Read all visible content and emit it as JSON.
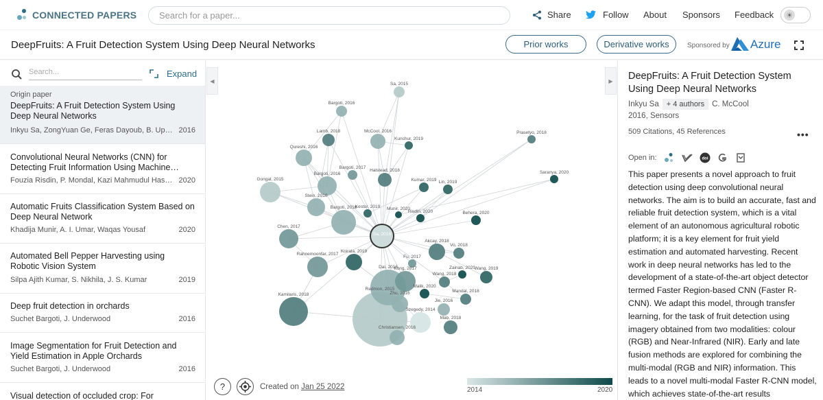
{
  "brand": {
    "name": "CONNECTED PAPERS"
  },
  "nav": {
    "search_placeholder": "Search for a paper...",
    "share": "Share",
    "follow": "Follow",
    "about": "About",
    "sponsors": "Sponsors",
    "feedback": "Feedback"
  },
  "titlebar": {
    "title": "DeepFruits: A Fruit Detection System Using Deep Neural Networks",
    "prior": "Prior works",
    "derivative": "Derivative works",
    "sponsored_by": "Sponsored by",
    "sponsor": "Azure"
  },
  "left": {
    "search_placeholder": "Search...",
    "expand": "Expand",
    "origin_label": "Origin paper",
    "papers": [
      {
        "title": "DeepFruits: A Fruit Detection System Using Deep Neural Networks",
        "authors": "Inkyu Sa, ZongYuan Ge, Feras Dayoub, B. Upcroft…",
        "year": "2016"
      },
      {
        "title": "Convolutional Neural Networks (CNN) for Detecting Fruit Information Using Machine…",
        "authors": "Fouzia Risdin, P. Mondal, Kazi Mahmudul Hassan",
        "year": "2020"
      },
      {
        "title": "Automatic Fruits Classification System Based on Deep Neural Network",
        "authors": "Khadija Munir, A. I. Umar, Waqas Yousaf",
        "year": "2020"
      },
      {
        "title": "Automated Bell Pepper Harvesting using Robotic Vision System",
        "authors": "Silpa Ajith Kumar, S. Nikhila, J. S. Kumar",
        "year": "2019"
      },
      {
        "title": "Deep fruit detection in orchards",
        "authors": "Suchet Bargoti, J. Underwood",
        "year": "2016"
      },
      {
        "title": "Image Segmentation for Fruit Detection and Yield Estimation in Apple Orchards",
        "authors": "Suchet Bargoti, J. Underwood",
        "year": "2016"
      },
      {
        "title": "Visual detection of occluded crop: For",
        "authors": "",
        "year": ""
      }
    ]
  },
  "graph": {
    "created_prefix": "Created on",
    "created_date": "Jan 25 2022",
    "legend_min": "2014",
    "legend_max": "2020",
    "help": "?",
    "nodes": [
      {
        "label": "Sa, 2016",
        "year": 2016
      },
      {
        "label": "Sa, 2015",
        "year": 2015
      },
      {
        "label": "Bargoti, 2016",
        "year": 2016
      },
      {
        "label": "Lamb, 2018",
        "year": 2018
      },
      {
        "label": "McCool, 2016",
        "year": 2016
      },
      {
        "label": "Kunchur, 2019",
        "year": 2019
      },
      {
        "label": "Prasetyo, 2018",
        "year": 2018
      },
      {
        "label": "Qureshi, 2016",
        "year": 2016
      },
      {
        "label": "Bargoti, 2017",
        "year": 2017
      },
      {
        "label": "Halstead, 2018",
        "year": 2018
      },
      {
        "label": "Bargoti, 2016",
        "year": 2016
      },
      {
        "label": "Saranya, 2020",
        "year": 2020
      },
      {
        "label": "Gongal, 2015",
        "year": 2015
      },
      {
        "label": "Kumar, 2019",
        "year": 2019
      },
      {
        "label": "Lin, 2019",
        "year": 2019
      },
      {
        "label": "Stein, 2016",
        "year": 2016
      },
      {
        "label": "Kestur, 2019",
        "year": 2019
      },
      {
        "label": "Munir, 2020",
        "year": 2020
      },
      {
        "label": "Risdin, 2020",
        "year": 2020
      },
      {
        "label": "Bargoti, 2016",
        "year": 2016
      },
      {
        "label": "Behera, 2020",
        "year": 2020
      },
      {
        "label": "Chen, 2017",
        "year": 2017
      },
      {
        "label": "Akcay, 2018",
        "year": 2018
      },
      {
        "label": "Vo, 2018",
        "year": 2018
      },
      {
        "label": "Koirala, 2019",
        "year": 2019
      },
      {
        "label": "Rahnemoonfar, 2017",
        "year": 2017
      },
      {
        "label": "Fu, 2017",
        "year": 2017
      },
      {
        "label": "Zainab, 2020",
        "year": 2020
      },
      {
        "label": "Wang, 2019",
        "year": 2019
      },
      {
        "label": "Kong, 2017",
        "year": 2017
      },
      {
        "label": "Dai, 2016",
        "year": 2016
      },
      {
        "label": "Wang, 2018",
        "year": 2018
      },
      {
        "label": "Malik, 2020",
        "year": 2020
      },
      {
        "label": "Mandal, 2018",
        "year": 2018
      },
      {
        "label": "Zhu, 2016",
        "year": 2016
      },
      {
        "label": "Jie, 2016",
        "year": 2016
      },
      {
        "label": "Kamilaris, 2018",
        "year": 2018
      },
      {
        "label": "Redmon, 2015",
        "year": 2015
      },
      {
        "label": "Szegedy, 2014",
        "year": 2014
      },
      {
        "label": "Mao, 2018",
        "year": 2018
      },
      {
        "label": "Christiansen, 2016",
        "year": 2016
      }
    ]
  },
  "right": {
    "title": "DeepFruits: A Fruit Detection System Using Deep Neural Networks",
    "author_first": "Inkyu Sa",
    "more_authors": "+ 4 authors",
    "author_last": "C. McCool",
    "venue": "2016, Sensors",
    "cites": "509 Citations, 45 References",
    "open_in": "Open in:",
    "abstract": "This paper presents a novel approach to fruit detection using deep convolutional neural networks. The aim is to build an accurate, fast and reliable fruit detection system, which is a vital element of an autonomous agricultural robotic platform; it is a key element for fruit yield estimation and automated harvesting. Recent work in deep neural networks has led to the development of a state-of-the-art object detector termed Faster Region-based CNN (Faster R-CNN). We adapt this model, through transfer learning, for the task of fruit detection using imagery obtained from two modalities: colour (RGB) and Near-Infrared (NIR). Early and late fusion methods are explored for combining the multi-modal (RGB and NIR) information. This leads to a novel multi-modal Faster R-CNN model, which achieves state-of-the-art results"
  },
  "colors": {
    "brand": "#4a7484",
    "accent": "#2b5e7c",
    "twitter": "#1da1f2",
    "azure": "#1f6fb5"
  }
}
